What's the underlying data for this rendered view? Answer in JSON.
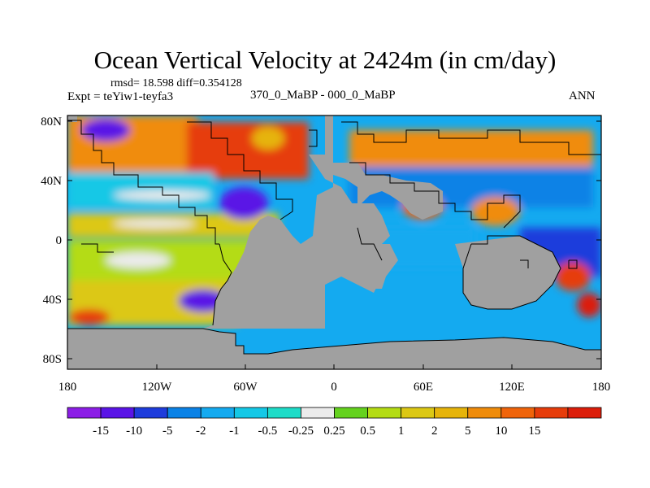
{
  "title": "Ocean Vertical Velocity at 2424m (in cm/day)",
  "stats": {
    "rmsd_label": "rmsd=",
    "rmsd_value": "18.598",
    "diff_label": "diff=",
    "diff_value": "0.354128"
  },
  "experiment": "Expt = teYiw1-teyfa3",
  "comparison": "370_0_MaBP - 000_0_MaBP",
  "season": "ANN",
  "map": {
    "land_color": "#a0a0a0",
    "y_ticks": [
      "80N",
      "40N",
      "0",
      "40S",
      "80S"
    ],
    "x_ticks": [
      "180",
      "120W",
      "60W",
      "0",
      "60E",
      "120E",
      "180"
    ]
  },
  "colorbar": {
    "colors": [
      "#8c1ee6",
      "#5a14e6",
      "#1e3cdc",
      "#0a82e6",
      "#14aaf0",
      "#14c8e6",
      "#1edcc8",
      "#ebebeb",
      "#64d21e",
      "#b4dc14",
      "#dcc814",
      "#e6b40a",
      "#f08c0a",
      "#f0640a",
      "#e63c0a",
      "#dc1e0a"
    ],
    "labels": [
      "-15",
      "-10",
      "-5",
      "-2",
      "-1",
      "-0.5",
      "-0.25",
      "0.25",
      "0.5",
      "1",
      "2",
      "5",
      "10",
      "15"
    ]
  }
}
